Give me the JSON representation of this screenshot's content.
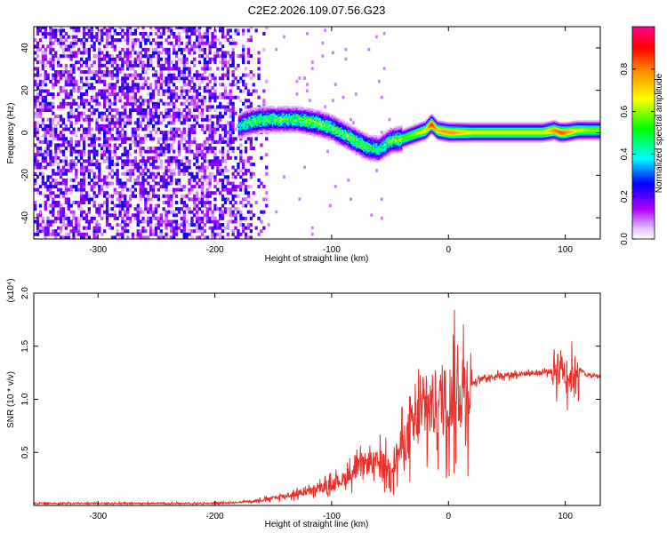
{
  "figure_title": "C2E2.2026.109.07.56.G23",
  "chart_data": [
    {
      "type": "heatmap",
      "title": "",
      "xlabel": "Height of straight line (km)",
      "ylabel": "Frequency (Hz)",
      "xlim": [
        -355,
        130
      ],
      "ylim": [
        -50,
        50
      ],
      "xticks": [
        -300,
        -200,
        -100,
        0,
        100
      ],
      "yticks": [
        -40,
        -20,
        0,
        20,
        40
      ],
      "grid": false,
      "colorbar": {
        "label": "Normalized spectral amplitude",
        "range": [
          0,
          1
        ],
        "ticks": [
          "0.0",
          "0.2",
          "0.4",
          "0.6",
          "0.8"
        ],
        "colors": [
          "#ffffff",
          "#b000ff",
          "#0000ff",
          "#00ffff",
          "#00ff00",
          "#ffff00",
          "#ff0000",
          "#ff00a0"
        ]
      },
      "noise_region_x": [
        -355,
        -155
      ],
      "signal_track": {
        "x": [
          -180,
          -170,
          -160,
          -150,
          -140,
          -130,
          -120,
          -110,
          -100,
          -90,
          -80,
          -70,
          -60,
          -50,
          -40,
          -30,
          -20,
          -15,
          -10,
          0,
          20,
          40,
          60,
          80,
          90,
          95,
          100,
          110,
          120,
          130
        ],
        "y": [
          3,
          5,
          6,
          6,
          6,
          6,
          5,
          4,
          2,
          -1,
          -4,
          -7,
          -8,
          -4,
          -3,
          -1,
          1,
          4,
          1,
          0,
          0,
          0,
          0,
          0,
          1,
          0,
          0,
          1,
          1,
          1
        ],
        "amplitude": [
          0.4,
          0.5,
          0.5,
          0.5,
          0.5,
          0.5,
          0.55,
          0.55,
          0.5,
          0.5,
          0.55,
          0.5,
          0.45,
          0.5,
          0.55,
          0.6,
          0.7,
          0.9,
          0.75,
          0.8,
          0.65,
          0.65,
          0.65,
          0.65,
          0.8,
          0.85,
          0.8,
          0.65,
          0.6,
          0.6
        ]
      }
    },
    {
      "type": "line",
      "title": "",
      "xlabel": "Height of straight line (km)",
      "ylabel": "SNR (10 * v/v)",
      "y_multiplier": "(x10⁴)",
      "xlim": [
        -355,
        130
      ],
      "ylim": [
        0,
        2.0
      ],
      "xticks": [
        -300,
        -200,
        -100,
        0,
        100
      ],
      "yticks": [
        "0.5",
        "1.0",
        "1.5",
        "2.0"
      ],
      "grid": false,
      "series": [
        {
          "color": "#e8302a",
          "x": [
            -355,
            -300,
            -250,
            -200,
            -180,
            -160,
            -150,
            -140,
            -130,
            -120,
            -110,
            -100,
            -90,
            -80,
            -70,
            -60,
            -50,
            -40,
            -30,
            -20,
            -10,
            0,
            10,
            20,
            30,
            40,
            60,
            80,
            90,
            95,
            100,
            105,
            110,
            120,
            130
          ],
          "y": [
            0.02,
            0.02,
            0.02,
            0.02,
            0.03,
            0.05,
            0.07,
            0.09,
            0.11,
            0.13,
            0.16,
            0.2,
            0.25,
            0.32,
            0.4,
            0.4,
            0.35,
            0.55,
            0.75,
            0.9,
            0.95,
            1.0,
            1.1,
            1.15,
            1.2,
            1.22,
            1.24,
            1.25,
            1.27,
            1.35,
            1.25,
            1.2,
            1.3,
            1.22,
            1.22
          ]
        }
      ]
    }
  ]
}
